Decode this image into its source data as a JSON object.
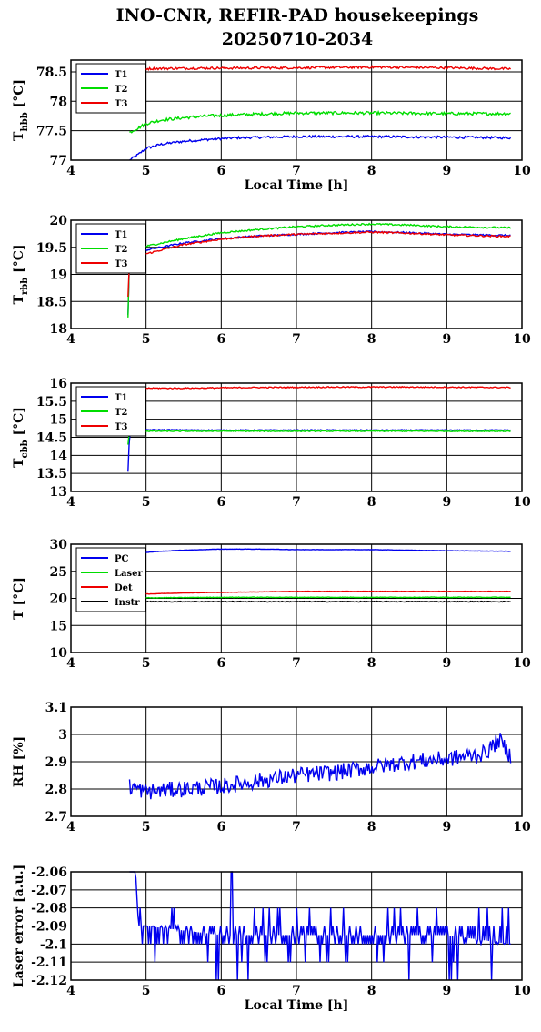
{
  "title": "INO-CNR, REFIR-PAD housekeepings",
  "subtitle": "20250710-2034",
  "colors": {
    "blue": "#0000ee",
    "green": "#00dd00",
    "red": "#ee0000",
    "black": "#000000"
  },
  "chart_data": [
    {
      "type": "line",
      "ylabel": "T_hbb [°C]",
      "ylabel_main": "T",
      "ylabel_sub": "hbb",
      "ylabel_unit": " [°C]",
      "xlabel": "Local Time [h]",
      "xlim": [
        4,
        10
      ],
      "ylim": [
        77,
        78.7
      ],
      "xticks": [
        "4",
        "5",
        "6",
        "7",
        "8",
        "9",
        "10"
      ],
      "yticks": [
        {
          "v": 77,
          "t": "77"
        },
        {
          "v": 77.5,
          "t": "77.5"
        },
        {
          "v": 78,
          "t": "78"
        },
        {
          "v": 78.5,
          "t": "78.5"
        }
      ],
      "grid": true,
      "legend": "top-left",
      "series": [
        {
          "name": "T1",
          "color": "blue",
          "noise": 0.02,
          "x": [
            4.78,
            4.9,
            5.0,
            5.2,
            5.5,
            5.8,
            6.2,
            7.0,
            8.0,
            9.0,
            9.85
          ],
          "y": [
            77.0,
            77.1,
            77.2,
            77.27,
            77.32,
            77.35,
            77.38,
            77.4,
            77.4,
            77.39,
            77.38
          ]
        },
        {
          "name": "T2",
          "color": "green",
          "noise": 0.025,
          "x": [
            4.78,
            4.9,
            5.0,
            5.2,
            5.5,
            5.8,
            6.2,
            7.0,
            8.0,
            9.0,
            9.85
          ],
          "y": [
            77.47,
            77.55,
            77.62,
            77.68,
            77.72,
            77.75,
            77.77,
            77.8,
            77.8,
            77.79,
            77.79
          ]
        },
        {
          "name": "T3",
          "color": "red",
          "noise": 0.02,
          "x": [
            4.78,
            5.5,
            7.0,
            8.0,
            9.0,
            9.85
          ],
          "y": [
            78.55,
            78.56,
            78.57,
            78.58,
            78.57,
            78.55
          ]
        }
      ]
    },
    {
      "type": "line",
      "ylabel": "T_rbb [°C]",
      "ylabel_main": "T",
      "ylabel_sub": "rbb",
      "ylabel_unit": " [°C]",
      "xlabel": "",
      "xlim": [
        4,
        10
      ],
      "ylim": [
        18,
        20
      ],
      "xticks": [
        "4",
        "5",
        "6",
        "7",
        "8",
        "9",
        "10"
      ],
      "yticks": [
        {
          "v": 18,
          "t": "18"
        },
        {
          "v": 18.5,
          "t": "18.5"
        },
        {
          "v": 19,
          "t": "19"
        },
        {
          "v": 19.5,
          "t": "19.5"
        },
        {
          "v": 20,
          "t": "20"
        }
      ],
      "grid": true,
      "legend": "top-left",
      "series": [
        {
          "name": "T1",
          "color": "blue",
          "noise": 0.015,
          "x": [
            4.76,
            4.78,
            4.79,
            5.0,
            5.5,
            6.0,
            6.5,
            7.0,
            7.5,
            8.0,
            8.5,
            9.0,
            9.85
          ],
          "y": [
            18.25,
            19.3,
            19.38,
            19.45,
            19.58,
            19.66,
            19.71,
            19.74,
            19.77,
            19.79,
            19.77,
            19.74,
            19.72
          ]
        },
        {
          "name": "T2",
          "color": "green",
          "noise": 0.015,
          "x": [
            4.76,
            4.78,
            4.79,
            5.0,
            5.5,
            6.0,
            6.5,
            7.0,
            7.5,
            8.0,
            8.5,
            9.0,
            9.85
          ],
          "y": [
            18.2,
            19.45,
            19.5,
            19.52,
            19.66,
            19.77,
            19.83,
            19.88,
            19.91,
            19.93,
            19.91,
            19.88,
            19.86
          ]
        },
        {
          "name": "T3",
          "color": "red",
          "noise": 0.015,
          "x": [
            4.76,
            4.78,
            4.79,
            5.0,
            5.5,
            6.0,
            6.5,
            7.0,
            7.5,
            8.0,
            8.5,
            9.0,
            9.85
          ],
          "y": [
            18.6,
            19.28,
            19.33,
            19.38,
            19.55,
            19.65,
            19.71,
            19.74,
            19.76,
            19.78,
            19.76,
            19.73,
            19.7
          ]
        }
      ]
    },
    {
      "type": "line",
      "ylabel": "T_cbb [°C]",
      "ylabel_main": "T",
      "ylabel_sub": "cbb",
      "ylabel_unit": " [°C]",
      "xlabel": "",
      "xlim": [
        4,
        10
      ],
      "ylim": [
        13,
        16
      ],
      "xticks": [
        "4",
        "5",
        "6",
        "7",
        "8",
        "9",
        "10"
      ],
      "yticks": [
        {
          "v": 13,
          "t": "13"
        },
        {
          "v": 13.5,
          "t": "13.5"
        },
        {
          "v": 14,
          "t": "14"
        },
        {
          "v": 14.5,
          "t": "14.5"
        },
        {
          "v": 15,
          "t": "15"
        },
        {
          "v": 15.5,
          "t": "15.5"
        },
        {
          "v": 16,
          "t": "16"
        }
      ],
      "grid": true,
      "legend": "top-left",
      "series": [
        {
          "name": "T1",
          "color": "blue",
          "noise": 0.012,
          "x": [
            4.76,
            4.78,
            4.8,
            5.0,
            6.0,
            7.0,
            8.0,
            9.0,
            9.85
          ],
          "y": [
            13.55,
            14.6,
            14.72,
            14.71,
            14.7,
            14.7,
            14.7,
            14.7,
            14.7
          ]
        },
        {
          "name": "T2",
          "color": "green",
          "noise": 0.012,
          "x": [
            4.76,
            4.78,
            4.8,
            5.0,
            6.0,
            7.0,
            8.0,
            9.0,
            9.85
          ],
          "y": [
            14.3,
            14.7,
            14.68,
            14.67,
            14.67,
            14.67,
            14.67,
            14.67,
            14.67
          ]
        },
        {
          "name": "T3",
          "color": "red",
          "noise": 0.015,
          "x": [
            4.8,
            5.5,
            6.5,
            7.5,
            8.5,
            9.85
          ],
          "y": [
            15.86,
            15.86,
            15.88,
            15.89,
            15.89,
            15.88
          ]
        }
      ]
    },
    {
      "type": "line",
      "ylabel": "T [°C]",
      "ylabel_main": "T [°C]",
      "ylabel_sub": "",
      "ylabel_unit": "",
      "xlabel": "",
      "xlim": [
        4,
        10
      ],
      "ylim": [
        10,
        30
      ],
      "xticks": [
        "4",
        "5",
        "6",
        "7",
        "8",
        "9",
        "10"
      ],
      "yticks": [
        {
          "v": 10,
          "t": "10"
        },
        {
          "v": 15,
          "t": "15"
        },
        {
          "v": 20,
          "t": "20"
        },
        {
          "v": 25,
          "t": "25"
        },
        {
          "v": 30,
          "t": "30"
        }
      ],
      "grid": true,
      "legend": "top-left",
      "series": [
        {
          "name": "PC",
          "color": "blue",
          "noise": 0.03,
          "x": [
            4.78,
            4.9,
            5.0,
            5.2,
            5.5,
            6.0,
            6.5,
            7.0,
            8.0,
            9.0,
            9.85
          ],
          "y": [
            28.0,
            28.3,
            28.5,
            28.7,
            28.9,
            29.1,
            29.1,
            29.0,
            29.0,
            28.8,
            28.7
          ]
        },
        {
          "name": "Laser",
          "color": "green",
          "noise": 0.05,
          "x": [
            4.78,
            5.0,
            6.0,
            7.0,
            8.0,
            9.0,
            9.85
          ],
          "y": [
            20.3,
            20.1,
            20.2,
            20.2,
            20.2,
            20.2,
            20.2
          ]
        },
        {
          "name": "Det",
          "color": "red",
          "noise": 0.03,
          "x": [
            4.78,
            5.0,
            5.5,
            6.0,
            6.5,
            7.0,
            8.0,
            9.0,
            9.85
          ],
          "y": [
            20.7,
            20.8,
            21.0,
            21.1,
            21.2,
            21.3,
            21.3,
            21.3,
            21.3
          ]
        },
        {
          "name": "Instr",
          "color": "black",
          "noise": 0.08,
          "x": [
            4.78,
            5.0,
            6.0,
            7.0,
            8.0,
            9.0,
            9.85
          ],
          "y": [
            19.3,
            19.4,
            19.4,
            19.4,
            19.4,
            19.4,
            19.4
          ]
        }
      ]
    },
    {
      "type": "line",
      "ylabel": "RH [%]",
      "ylabel_main": "RH [%]",
      "ylabel_sub": "",
      "ylabel_unit": "",
      "xlabel": "",
      "xlim": [
        4,
        10
      ],
      "ylim": [
        2.7,
        3.1
      ],
      "xticks": [
        "4",
        "5",
        "6",
        "7",
        "8",
        "9",
        "10"
      ],
      "yticks": [
        {
          "v": 2.7,
          "t": "2.7"
        },
        {
          "v": 2.8,
          "t": "2.8"
        },
        {
          "v": 2.9,
          "t": "2.9"
        },
        {
          "v": 3,
          "t": "3"
        },
        {
          "v": 3.1,
          "t": "3.1"
        }
      ],
      "grid": true,
      "legend": "none",
      "series": [
        {
          "name": "",
          "color": "blue",
          "noise": 0.03,
          "x": [
            4.78,
            5.0,
            5.5,
            6.0,
            6.5,
            7.0,
            7.5,
            8.0,
            8.5,
            9.0,
            9.5,
            9.7,
            9.85
          ],
          "y": [
            2.81,
            2.79,
            2.8,
            2.81,
            2.83,
            2.85,
            2.86,
            2.88,
            2.9,
            2.91,
            2.93,
            2.98,
            2.92
          ]
        }
      ]
    },
    {
      "type": "line",
      "ylabel": "Laser error [a.u.]",
      "ylabel_main": "Laser error [a.u.]",
      "ylabel_sub": "",
      "ylabel_unit": "",
      "xlabel": "Local Time [h]",
      "xlim": [
        4,
        10
      ],
      "ylim": [
        -2.12,
        -2.06
      ],
      "xticks": [
        "4",
        "5",
        "6",
        "7",
        "8",
        "9",
        "10"
      ],
      "yticks": [
        {
          "v": -2.12,
          "t": "-2.12"
        },
        {
          "v": -2.11,
          "t": "-2.11"
        },
        {
          "v": -2.1,
          "t": "-2.1"
        },
        {
          "v": -2.09,
          "t": "-2.09"
        },
        {
          "v": -2.08,
          "t": "-2.08"
        },
        {
          "v": -2.07,
          "t": "-2.07"
        },
        {
          "v": -2.06,
          "t": "-2.06"
        }
      ],
      "grid": true,
      "legend": "none",
      "series": [
        {
          "name": "",
          "color": "blue",
          "noise": 0,
          "quantized": true,
          "x": [
            4.78,
            4.86,
            4.9,
            5.0,
            6.0,
            7.0,
            8.0,
            9.0,
            9.85
          ],
          "y": [
            -2.06,
            -2.06,
            -2.09,
            -2.09,
            -2.095,
            -2.095,
            -2.095,
            -2.095,
            -2.1
          ]
        }
      ]
    }
  ]
}
